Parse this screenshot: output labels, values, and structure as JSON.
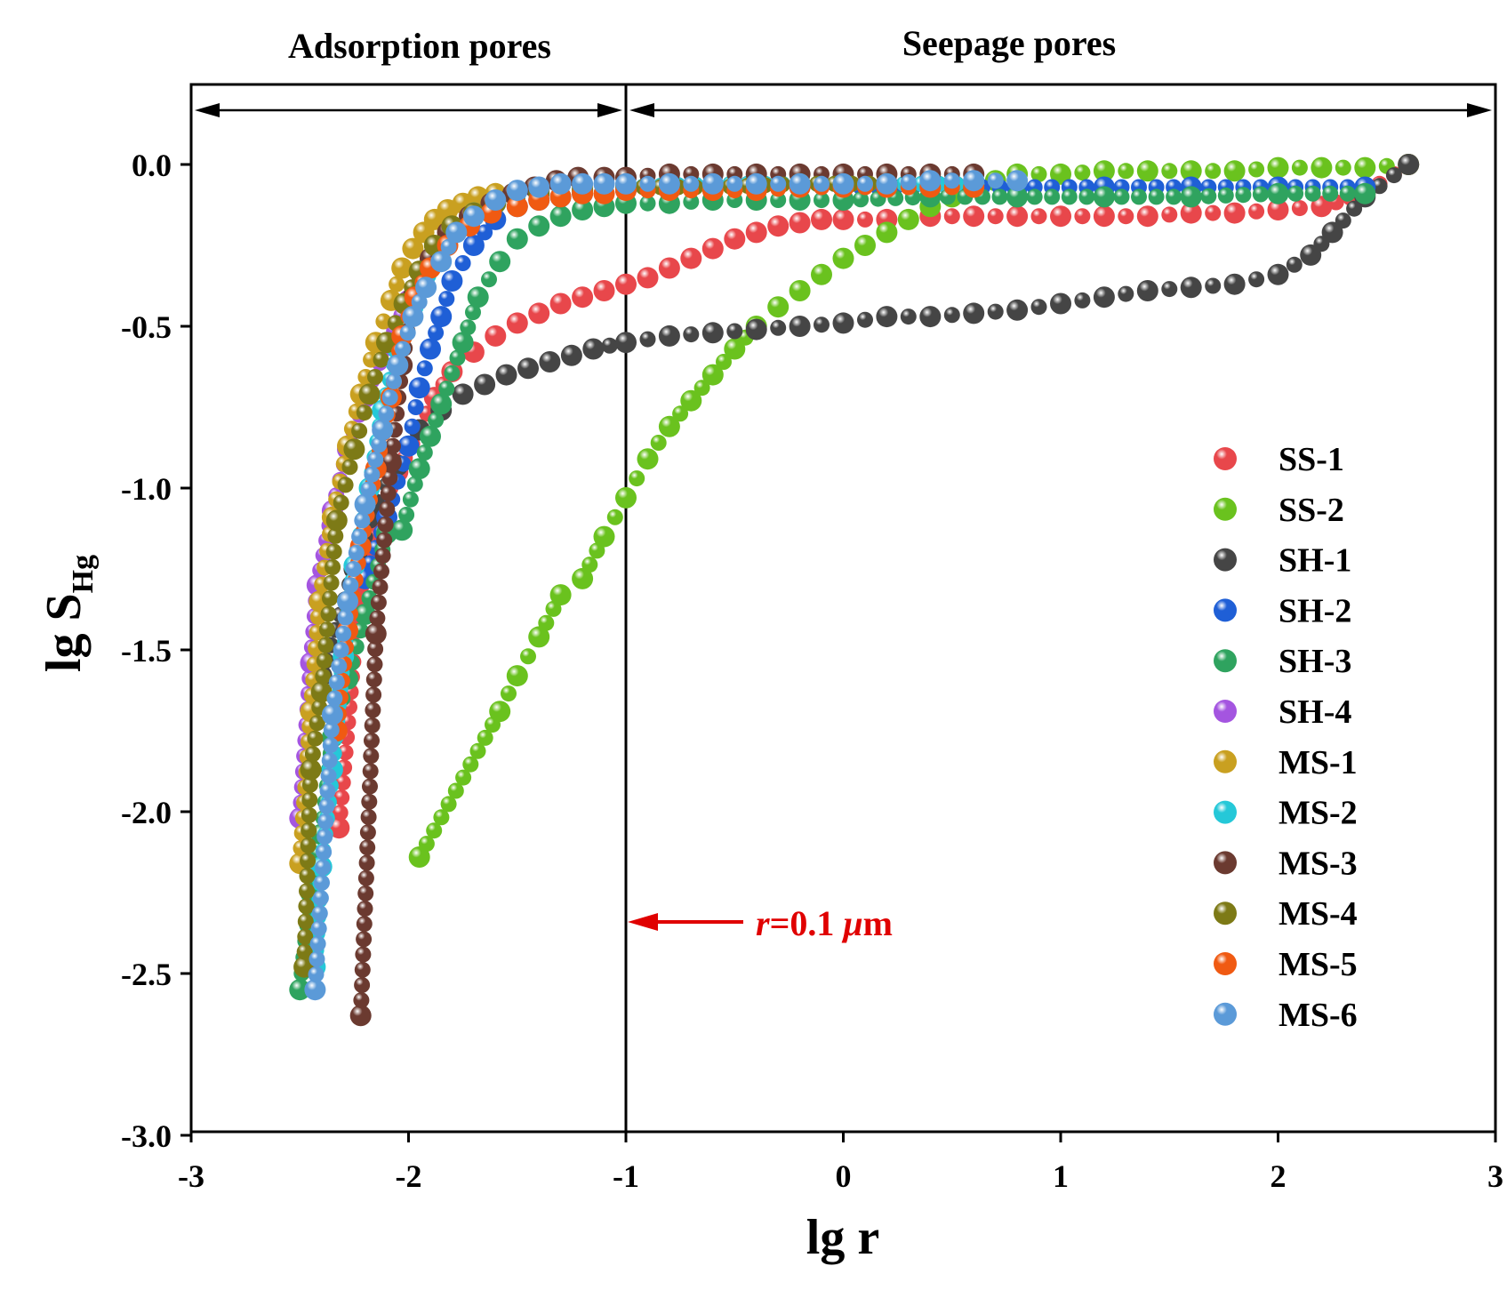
{
  "chart_data": {
    "type": "scatter",
    "xlabel": "lg r",
    "ylabel": "lg S",
    "ylabel_sub": "Hg",
    "xlim": [
      -3,
      3
    ],
    "ylim": [
      -3,
      0.25
    ],
    "xticks": [
      -3,
      -2,
      -1,
      0,
      1,
      2,
      3
    ],
    "yticks": [
      0.0,
      -0.5,
      -1.0,
      -1.5,
      -2.0,
      -2.5,
      -3.0
    ],
    "xtick_labels": [
      "-3",
      "-2",
      "-1",
      "0",
      "1",
      "2",
      "3"
    ],
    "ytick_labels": [
      "0.0",
      "-0.5",
      "-1.0",
      "-1.5",
      "-2.0",
      "-2.5",
      "-3.0"
    ],
    "grid": false,
    "legend_position": "right",
    "regions": [
      {
        "label": "Adsorption pores",
        "from": -3,
        "to": -1
      },
      {
        "label": "Seepage pores",
        "from": -1,
        "to": 3
      }
    ],
    "divider_x": -1,
    "annotation": {
      "prefix": "r",
      "text": "=0.1 ",
      "unit_mu": "μ",
      "unit_m": "m",
      "x": -1,
      "y": -2.35
    },
    "series": [
      {
        "name": "SS-1",
        "color": "#e8474b",
        "x": [
          -2.32,
          -2.23,
          -2.15,
          -2.05,
          -1.95,
          -1.88,
          -1.8,
          -1.7,
          -1.6,
          -1.5,
          -1.4,
          -1.3,
          -1.2,
          -1.1,
          -1.0,
          -0.9,
          -0.8,
          -0.7,
          -0.6,
          -0.5,
          -0.4,
          -0.3,
          -0.2,
          -0.1,
          0.0,
          0.2,
          0.4,
          0.6,
          0.8,
          1.0,
          1.2,
          1.4,
          1.6,
          1.8,
          2.0,
          2.2,
          2.4,
          2.6
        ],
        "y": [
          -2.05,
          -1.35,
          -1.1,
          -0.95,
          -0.82,
          -0.72,
          -0.64,
          -0.58,
          -0.53,
          -0.49,
          -0.46,
          -0.43,
          -0.41,
          -0.39,
          -0.37,
          -0.35,
          -0.32,
          -0.29,
          -0.26,
          -0.23,
          -0.21,
          -0.19,
          -0.18,
          -0.17,
          -0.17,
          -0.17,
          -0.16,
          -0.16,
          -0.16,
          -0.16,
          -0.16,
          -0.16,
          -0.15,
          -0.15,
          -0.14,
          -0.13,
          -0.09,
          0.0
        ]
      },
      {
        "name": "SS-2",
        "color": "#6ac21e",
        "x": [
          -1.95,
          -1.58,
          -1.5,
          -1.4,
          -1.3,
          -1.2,
          -1.1,
          -1.0,
          -0.9,
          -0.8,
          -0.7,
          -0.6,
          -0.5,
          -0.4,
          -0.3,
          -0.2,
          -0.1,
          0.0,
          0.1,
          0.2,
          0.3,
          0.4,
          0.5,
          0.6,
          0.7,
          0.8,
          1.0,
          1.2,
          1.4,
          1.6,
          1.8,
          2.0,
          2.2,
          2.4,
          2.6
        ],
        "y": [
          -2.14,
          -1.69,
          -1.58,
          -1.46,
          -1.33,
          -1.28,
          -1.15,
          -1.03,
          -0.91,
          -0.81,
          -0.73,
          -0.65,
          -0.57,
          -0.5,
          -0.44,
          -0.39,
          -0.34,
          -0.29,
          -0.25,
          -0.21,
          -0.17,
          -0.13,
          -0.1,
          -0.07,
          -0.05,
          -0.03,
          -0.03,
          -0.02,
          -0.02,
          -0.02,
          -0.02,
          -0.01,
          -0.01,
          -0.01,
          0.0
        ]
      },
      {
        "name": "SH-1",
        "color": "#454545",
        "x": [
          -2.4,
          -2.25,
          -2.15,
          -2.05,
          -1.95,
          -1.85,
          -1.75,
          -1.65,
          -1.55,
          -1.45,
          -1.35,
          -1.25,
          -1.15,
          -1.0,
          -0.8,
          -0.6,
          -0.4,
          -0.2,
          0.0,
          0.2,
          0.4,
          0.6,
          0.8,
          1.0,
          1.2,
          1.4,
          1.6,
          1.8,
          2.0,
          2.15,
          2.25,
          2.4,
          2.6
        ],
        "y": [
          -1.58,
          -1.25,
          -1.05,
          -0.93,
          -0.82,
          -0.76,
          -0.71,
          -0.68,
          -0.65,
          -0.63,
          -0.61,
          -0.59,
          -0.57,
          -0.55,
          -0.53,
          -0.52,
          -0.51,
          -0.5,
          -0.49,
          -0.47,
          -0.47,
          -0.46,
          -0.45,
          -0.43,
          -0.41,
          -0.39,
          -0.38,
          -0.37,
          -0.34,
          -0.28,
          -0.21,
          -0.1,
          0.0
        ]
      },
      {
        "name": "SH-2",
        "color": "#1f5fd6",
        "x": [
          -2.2,
          -2.1,
          -2.0,
          -1.95,
          -1.9,
          -1.85,
          -1.8,
          -1.7,
          -1.6,
          -1.5,
          -1.4,
          -1.3,
          -1.2,
          -1.0,
          -0.8,
          -0.6,
          -0.4,
          -0.2,
          0.0,
          0.4,
          0.8,
          1.2,
          1.6,
          2.0,
          2.4
        ],
        "y": [
          -1.28,
          -1.09,
          -0.87,
          -0.69,
          -0.57,
          -0.47,
          -0.36,
          -0.25,
          -0.17,
          -0.13,
          -0.11,
          -0.1,
          -0.09,
          -0.08,
          -0.08,
          -0.07,
          -0.07,
          -0.07,
          -0.07,
          -0.07,
          -0.07,
          -0.07,
          -0.07,
          -0.07,
          -0.07
        ]
      },
      {
        "name": "SH-3",
        "color": "#2fa35f",
        "x": [
          -2.5,
          -2.45,
          -2.4,
          -2.35,
          -2.28,
          -2.2,
          -2.1,
          -2.03,
          -1.95,
          -1.9,
          -1.85,
          -1.75,
          -1.68,
          -1.58,
          -1.5,
          -1.4,
          -1.3,
          -1.2,
          -1.1,
          -1.0,
          -0.8,
          -0.6,
          -0.4,
          -0.2,
          0.0,
          0.4,
          0.8,
          1.2,
          1.6,
          2.0,
          2.4
        ],
        "y": [
          -2.55,
          -2.25,
          -2.07,
          -1.77,
          -1.59,
          -1.39,
          -1.14,
          -1.13,
          -0.94,
          -0.84,
          -0.74,
          -0.55,
          -0.41,
          -0.3,
          -0.23,
          -0.19,
          -0.16,
          -0.14,
          -0.13,
          -0.12,
          -0.12,
          -0.11,
          -0.11,
          -0.11,
          -0.11,
          -0.1,
          -0.1,
          -0.1,
          -0.1,
          -0.09,
          -0.09
        ]
      },
      {
        "name": "SH-4",
        "color": "#a455e0",
        "x": [
          -2.5,
          -2.45,
          -2.42,
          -2.35,
          -2.28,
          -2.2,
          -2.1,
          -2.0,
          -1.9,
          -1.8,
          -1.7,
          -1.6,
          -1.4,
          -1.2,
          -1.0,
          -0.6,
          -0.2,
          0.2,
          0.6
        ],
        "y": [
          -2.02,
          -1.54,
          -1.3,
          -1.07,
          -0.88,
          -0.72,
          -0.56,
          -0.42,
          -0.3,
          -0.2,
          -0.14,
          -0.1,
          -0.08,
          -0.07,
          -0.07,
          -0.06,
          -0.06,
          -0.06,
          -0.06
        ]
      },
      {
        "name": "MS-1",
        "color": "#c9a020",
        "x": [
          -2.5,
          -2.45,
          -2.41,
          -2.35,
          -2.28,
          -2.22,
          -2.15,
          -2.08,
          -2.03,
          -1.98,
          -1.93,
          -1.88,
          -1.82,
          -1.75,
          -1.68,
          -1.6,
          -1.4,
          -1.2,
          -1.0,
          -0.6,
          -0.2,
          0.2,
          0.6
        ],
        "y": [
          -2.16,
          -1.69,
          -1.35,
          -1.09,
          -0.87,
          -0.71,
          -0.55,
          -0.42,
          -0.32,
          -0.26,
          -0.21,
          -0.17,
          -0.14,
          -0.12,
          -0.1,
          -0.09,
          -0.08,
          -0.07,
          -0.07,
          -0.06,
          -0.06,
          -0.06,
          -0.06
        ]
      },
      {
        "name": "MS-2",
        "color": "#25c8d8",
        "x": [
          -2.43,
          -2.4,
          -2.35,
          -2.3,
          -2.25,
          -2.18,
          -2.12,
          -2.05,
          -1.98,
          -1.92,
          -1.85,
          -1.78,
          -1.7,
          -1.6,
          -1.4,
          -1.2,
          -1.0,
          -0.6,
          -0.2,
          0.2,
          0.6
        ],
        "y": [
          -2.48,
          -2.17,
          -1.87,
          -1.52,
          -1.24,
          -1.0,
          -0.76,
          -0.57,
          -0.44,
          -0.34,
          -0.26,
          -0.2,
          -0.15,
          -0.12,
          -0.09,
          -0.08,
          -0.07,
          -0.06,
          -0.06,
          -0.06,
          -0.06
        ]
      },
      {
        "name": "MS-3",
        "color": "#6b3a30",
        "x": [
          -2.22,
          -2.15,
          -2.08,
          -2.03,
          -1.98,
          -1.9,
          -1.82,
          -1.72,
          -1.62,
          -1.52,
          -1.42,
          -1.32,
          -1.22,
          -1.1,
          -1.0,
          -0.8,
          -0.6,
          -0.4,
          -0.2,
          0.0,
          0.2,
          0.4,
          0.6
        ],
        "y": [
          -2.63,
          -1.45,
          -0.92,
          -0.62,
          -0.41,
          -0.29,
          -0.21,
          -0.16,
          -0.12,
          -0.09,
          -0.07,
          -0.05,
          -0.04,
          -0.04,
          -0.04,
          -0.03,
          -0.03,
          -0.03,
          -0.03,
          -0.03,
          -0.03,
          -0.03,
          -0.03
        ]
      },
      {
        "name": "MS-4",
        "color": "#7d7a16",
        "x": [
          -2.48,
          -2.45,
          -2.4,
          -2.33,
          -2.25,
          -2.18,
          -2.1,
          -2.02,
          -1.95,
          -1.88,
          -1.8,
          -1.7,
          -1.6,
          -1.4,
          -1.2,
          -1.0,
          -0.6,
          -0.2,
          0.2
        ],
        "y": [
          -2.48,
          -1.87,
          -1.63,
          -1.1,
          -0.88,
          -0.71,
          -0.55,
          -0.43,
          -0.33,
          -0.25,
          -0.19,
          -0.15,
          -0.12,
          -0.09,
          -0.08,
          -0.07,
          -0.07,
          -0.06,
          -0.06
        ]
      },
      {
        "name": "MS-5",
        "color": "#f05a12",
        "x": [
          -2.33,
          -2.28,
          -2.22,
          -2.15,
          -2.08,
          -2.03,
          -1.97,
          -1.9,
          -1.82,
          -1.72,
          -1.62,
          -1.5,
          -1.4,
          -1.3,
          -1.2,
          -1.1,
          -1.0,
          -0.8,
          -0.6,
          -0.4,
          -0.2,
          0.0,
          0.2,
          0.4,
          0.6
        ],
        "y": [
          -1.75,
          -1.44,
          -1.18,
          -0.94,
          -0.72,
          -0.53,
          -0.41,
          -0.32,
          -0.25,
          -0.19,
          -0.15,
          -0.13,
          -0.11,
          -0.1,
          -0.09,
          -0.09,
          -0.08,
          -0.08,
          -0.08,
          -0.08,
          -0.07,
          -0.07,
          -0.07,
          -0.07,
          -0.07
        ]
      },
      {
        "name": "MS-6",
        "color": "#5b9ad8",
        "x": [
          -2.43,
          -2.35,
          -2.28,
          -2.2,
          -2.12,
          -2.05,
          -1.98,
          -1.92,
          -1.85,
          -1.78,
          -1.7,
          -1.6,
          -1.5,
          -1.4,
          -1.3,
          -1.2,
          -1.1,
          -1.0,
          -0.8,
          -0.6,
          -0.4,
          -0.2,
          0.0,
          0.2,
          0.4,
          0.6,
          0.8
        ],
        "y": [
          -2.55,
          -1.7,
          -1.35,
          -1.05,
          -0.82,
          -0.62,
          -0.47,
          -0.38,
          -0.3,
          -0.21,
          -0.16,
          -0.11,
          -0.08,
          -0.07,
          -0.06,
          -0.06,
          -0.06,
          -0.06,
          -0.06,
          -0.06,
          -0.06,
          -0.06,
          -0.06,
          -0.06,
          -0.05,
          -0.05,
          -0.05
        ]
      }
    ]
  }
}
